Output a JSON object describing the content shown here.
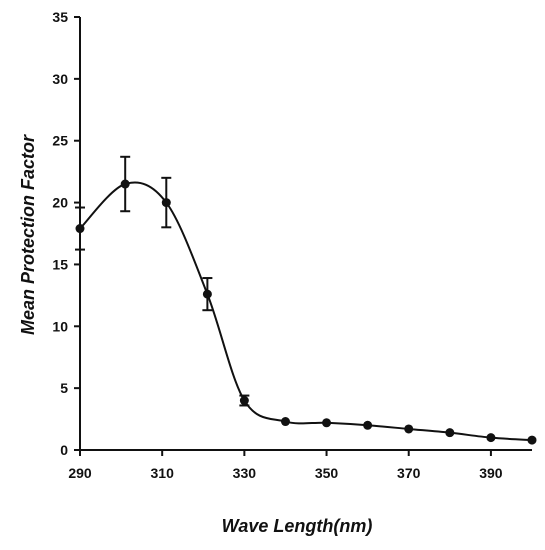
{
  "chart_data": {
    "type": "line",
    "title": "",
    "xlabel": "Wave Length(nm)",
    "ylabel": "Mean Protection Factor",
    "xlim": [
      290,
      400
    ],
    "ylim": [
      0,
      35
    ],
    "x_ticks": [
      290,
      310,
      330,
      350,
      370,
      390
    ],
    "y_ticks": [
      0,
      5,
      10,
      15,
      20,
      25,
      30,
      35
    ],
    "grid": false,
    "legend": "none",
    "line_color": "#111111",
    "series": [
      {
        "x": [
          290,
          301,
          311,
          321,
          330,
          340,
          350,
          360,
          370,
          380,
          390,
          400
        ],
        "y": [
          17.9,
          21.5,
          20.0,
          12.6,
          4.0,
          2.3,
          2.2,
          2.0,
          1.7,
          1.4,
          1.0,
          0.8
        ],
        "error": [
          1.7,
          2.2,
          2.0,
          1.3,
          0.4,
          0,
          0,
          0,
          0,
          0,
          0,
          0
        ]
      }
    ]
  }
}
